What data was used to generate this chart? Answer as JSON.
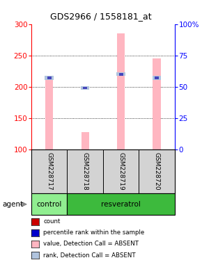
{
  "title": "GDS2966 / 1558181_at",
  "samples": [
    "GSM228717",
    "GSM228718",
    "GSM228719",
    "GSM228720"
  ],
  "ylim_left": [
    100,
    300
  ],
  "ylim_right": [
    0,
    100
  ],
  "yticks_left": [
    100,
    150,
    200,
    250,
    300
  ],
  "yticks_right": [
    0,
    25,
    50,
    75,
    100
  ],
  "ytick_labels_right": [
    "0",
    "25",
    "50",
    "75",
    "100%"
  ],
  "bar_values": [
    215,
    128,
    285,
    245
  ],
  "rank_values": [
    57,
    49,
    60,
    57
  ],
  "bar_color_absent": "#ffb6c1",
  "rank_color_absent": "#b0c4de",
  "group_colors": {
    "control": "#90ee90",
    "resveratrol": "#3dba3d"
  },
  "label_area_color": "#d3d3d3",
  "legend_items": [
    {
      "color": "#cc0000",
      "label": "count"
    },
    {
      "color": "#0000cc",
      "label": "percentile rank within the sample"
    },
    {
      "color": "#ffb6c1",
      "label": "value, Detection Call = ABSENT"
    },
    {
      "color": "#b0c4de",
      "label": "rank, Detection Call = ABSENT"
    }
  ],
  "background_color": "#ffffff"
}
